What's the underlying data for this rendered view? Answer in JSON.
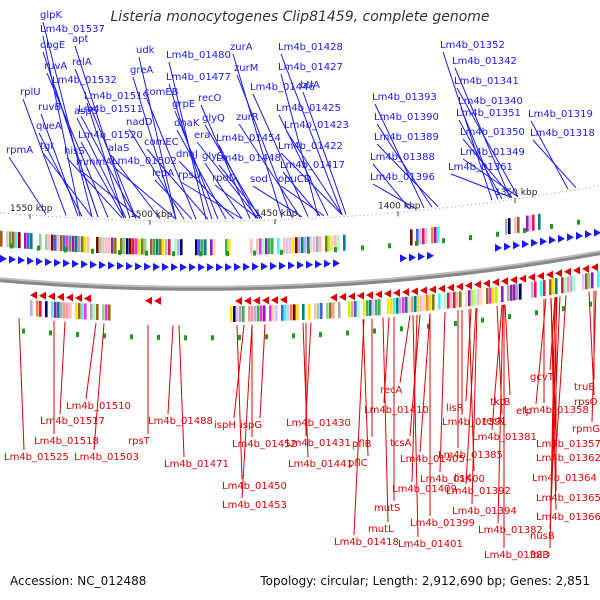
{
  "header": {
    "title": "Listeria monocytogenes Clip81459, complete genome"
  },
  "footer": {
    "accession": "Accession: NC_012488",
    "summary": "Topology: circular; Length: 2,912,690 bp; Genes: 2,851"
  },
  "colors": {
    "forward": "#1a1aff",
    "reverse": "#e00000",
    "backbone": "#888888",
    "marker": "#1e9a1e"
  },
  "ticks": [
    "1550 kbp",
    "1500 kbp",
    "1450 kbp",
    "1400 kbp",
    "1350 kbp"
  ],
  "forward_genes": [
    "rpmA",
    "rplU",
    "glpK",
    "obgE",
    "ruvA",
    "ruvB",
    "queA",
    "tgt",
    "apt",
    "relA",
    "Lm4b_01537",
    "Lm4b_01532",
    "aspS",
    "hisS",
    "mmmA",
    "Lm4b_01519",
    "Lm4b_01520",
    "alaS",
    "Lm4b_01511",
    "Lm4b_01502",
    "udk",
    "greA",
    "comEB",
    "nadD",
    "comEC",
    "lepA",
    "grpE",
    "dnaK",
    "dnaJ",
    "rpsU",
    "Lm4b_01480",
    "Lm4b_01477",
    "recO",
    "glyQ",
    "era",
    "glyS",
    "rpoD",
    "zurA",
    "zurM",
    "zurR",
    "Lm4b_01454",
    "Lm4b_01448",
    "sod",
    "Lm4b_01446",
    "Lm4b_01428",
    "Lm4b_01427",
    "btlA",
    "Lm4b_01425",
    "Lm4b_01423",
    "Lm4b_01422",
    "Lm4b_01417",
    "opuCD",
    "Lm4b_01393",
    "Lm4b_01390",
    "Lm4b_01389",
    "Lm4b_01388",
    "Lm4b_01396",
    "Lm4b_01352",
    "Lm4b_01342",
    "Lm4b_01341",
    "Lm4b_01340",
    "Lm4b_01351",
    "Lm4b_01350",
    "Lm4b_01349",
    "Lm4b_01361",
    "Lm4b_01319",
    "Lm4b_01318"
  ],
  "reverse_genes": [
    "Lm4b_01510",
    "Lm4b_01517",
    "Lm4b_01518",
    "Lm4b_01525",
    "Lm4b_01503",
    "Lm4b_01488",
    "rpsT",
    "Lm4b_01471",
    "ispH",
    "ispG",
    "Lm4b_01452",
    "Lm4b_01450",
    "Lm4b_01453",
    "Lm4b_01430",
    "Lm4b_01431",
    "Lm4b_01441",
    "recA",
    "Lm4b_01410",
    "pflB",
    "pflC",
    "Lm4b_01405",
    "Lm4b_01409",
    "mutS",
    "mutL",
    "Lm4b_01418",
    "Lm4b_01400",
    "Lm4b_01399",
    "Lm4b_01401",
    "tcsA",
    "lisR",
    "Lm4b_01391",
    "lisK",
    "Lm4b_01392",
    "Lm4b_01394",
    "Lm4b_01385",
    "recN",
    "Lm4b_01381",
    "Lm4b_01382",
    "Lm4b_01383",
    "tktB",
    "efp",
    "gcvT",
    "Lm4b_01358",
    "Lm4b_01357",
    "Lm4b_01362",
    "Lm4b_01364",
    "Lm4b_01365",
    "Lm4b_01366",
    "nusB",
    "folD",
    "truB",
    "rpsO",
    "rpmG"
  ]
}
